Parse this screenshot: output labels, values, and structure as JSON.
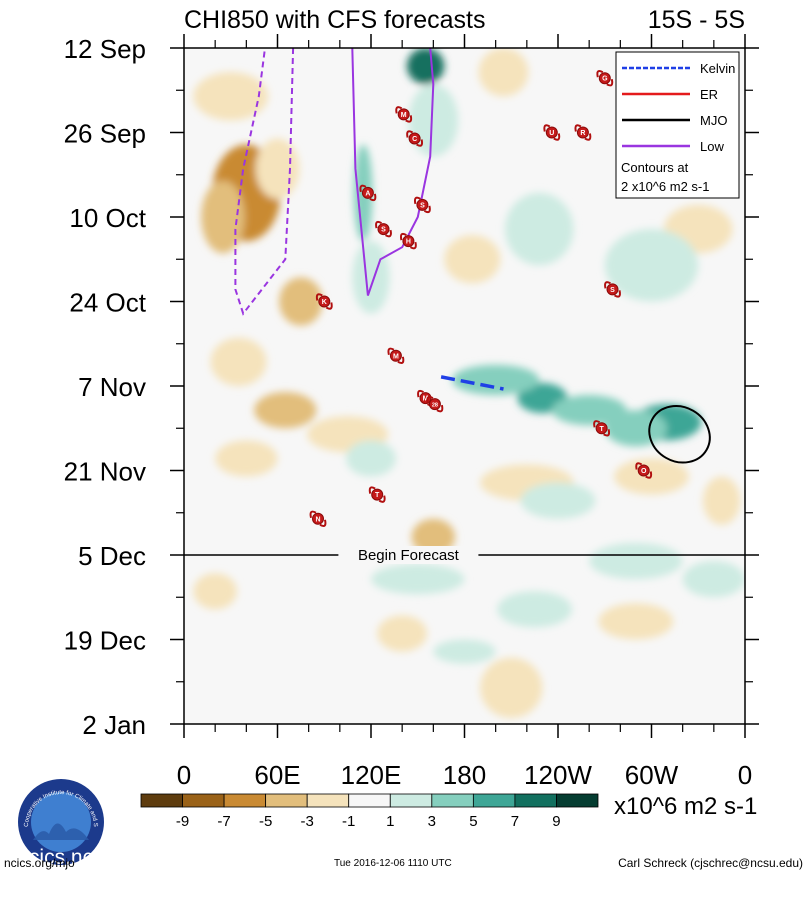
{
  "chart_data": {
    "type": "heatmap",
    "title": "CHI850 with CFS forecasts",
    "region_label": "15S - 5S",
    "y_axis": {
      "labels": [
        "12 Sep",
        "26 Sep",
        "10 Oct",
        "24 Oct",
        "7 Nov",
        "21 Nov",
        "5 Dec",
        "19 Dec",
        "2 Jan"
      ],
      "start_day": 0,
      "end_day": 112,
      "label_step_days": 14
    },
    "x_axis": {
      "labels": [
        "0",
        "60E",
        "120E",
        "180",
        "120W",
        "60W",
        "0"
      ],
      "lon_min": 0,
      "lon_max": 360
    },
    "forecast_line": {
      "day": 84,
      "label": "Begin Forecast"
    },
    "colorbar": {
      "tick_labels": [
        "-9",
        "-7",
        "-5",
        "-3",
        "-1",
        "1",
        "3",
        "5",
        "7",
        "9"
      ],
      "colors": [
        "#5e3c0e",
        "#9a6218",
        "#c98a33",
        "#e2be7c",
        "#f5e3bc",
        "#f7f7f7",
        "#cdebe2",
        "#85cfbe",
        "#3ea696",
        "#12705f",
        "#053d31"
      ],
      "units": "x10^6 m2 s-1"
    },
    "legend": {
      "entries": [
        {
          "name": "Kelvin",
          "color": "#1f3fe6",
          "dashed": true
        },
        {
          "name": "ER",
          "color": "#e41a1c",
          "dashed": false
        },
        {
          "name": "MJO",
          "color": "#000000",
          "dashed": false
        },
        {
          "name": "Low",
          "color": "#9a35e0",
          "dashed": false
        }
      ],
      "note_line1": "Contours at",
      "note_line2": "2 x10^6 m2 s-1"
    },
    "anomalies": [
      {
        "lon": 40,
        "day": 24,
        "value": -6,
        "rlon": 22,
        "rday": 8
      },
      {
        "lon": 25,
        "day": 28,
        "value": -4,
        "rlon": 14,
        "rday": 6
      },
      {
        "lon": 60,
        "day": 20,
        "value": -3,
        "rlon": 14,
        "rday": 5
      },
      {
        "lon": 30,
        "day": 8,
        "value": -3,
        "rlon": 24,
        "rday": 4
      },
      {
        "lon": 75,
        "day": 42,
        "value": -5,
        "rlon": 14,
        "rday": 4
      },
      {
        "lon": 35,
        "day": 52,
        "value": -3,
        "rlon": 18,
        "rday": 4
      },
      {
        "lon": 65,
        "day": 60,
        "value": -4,
        "rlon": 20,
        "rday": 3
      },
      {
        "lon": 105,
        "day": 64,
        "value": -3,
        "rlon": 26,
        "rday": 3
      },
      {
        "lon": 40,
        "day": 68,
        "value": -3,
        "rlon": 20,
        "rday": 3
      },
      {
        "lon": 160,
        "day": 81,
        "value": -5,
        "rlon": 14,
        "rday": 3
      },
      {
        "lon": 220,
        "day": 72,
        "value": -3,
        "rlon": 30,
        "rday": 3
      },
      {
        "lon": 300,
        "day": 71,
        "value": -3,
        "rlon": 24,
        "rday": 3
      },
      {
        "lon": 205,
        "day": 4,
        "value": -3,
        "rlon": 16,
        "rday": 4
      },
      {
        "lon": 185,
        "day": 35,
        "value": -3,
        "rlon": 18,
        "rday": 4
      },
      {
        "lon": 330,
        "day": 30,
        "value": -3,
        "rlon": 22,
        "rday": 4
      },
      {
        "lon": 345,
        "day": 75,
        "value": -3,
        "rlon": 12,
        "rday": 4
      },
      {
        "lon": 290,
        "day": 95,
        "value": -2,
        "rlon": 24,
        "rday": 3
      },
      {
        "lon": 210,
        "day": 106,
        "value": -2,
        "rlon": 20,
        "rday": 5
      },
      {
        "lon": 140,
        "day": 97,
        "value": -2,
        "rlon": 16,
        "rday": 3
      },
      {
        "lon": 20,
        "day": 90,
        "value": -2,
        "rlon": 14,
        "rday": 3
      },
      {
        "lon": 155,
        "day": 3,
        "value": 7,
        "rlon": 12,
        "rday": 3
      },
      {
        "lon": 115,
        "day": 24,
        "value": 4,
        "rlon": 6,
        "rday": 8
      },
      {
        "lon": 120,
        "day": 38,
        "value": 2,
        "rlon": 12,
        "rday": 6
      },
      {
        "lon": 160,
        "day": 12,
        "value": 2,
        "rlon": 16,
        "rday": 6
      },
      {
        "lon": 230,
        "day": 58,
        "value": 6,
        "rlon": 16,
        "rday": 2.5
      },
      {
        "lon": 200,
        "day": 55,
        "value": 4,
        "rlon": 28,
        "rday": 2.5
      },
      {
        "lon": 260,
        "day": 60,
        "value": 4,
        "rlon": 24,
        "rday": 2.5
      },
      {
        "lon": 310,
        "day": 62,
        "value": 6,
        "rlon": 22,
        "rday": 3
      },
      {
        "lon": 290,
        "day": 63,
        "value": 3,
        "rlon": 20,
        "rday": 3
      },
      {
        "lon": 228,
        "day": 30,
        "value": 2,
        "rlon": 22,
        "rday": 6
      },
      {
        "lon": 300,
        "day": 36,
        "value": 2,
        "rlon": 30,
        "rday": 6
      },
      {
        "lon": 150,
        "day": 88,
        "value": 2,
        "rlon": 30,
        "rday": 2.5
      },
      {
        "lon": 225,
        "day": 93,
        "value": 2,
        "rlon": 24,
        "rday": 3
      },
      {
        "lon": 290,
        "day": 85,
        "value": 2,
        "rlon": 30,
        "rday": 3
      },
      {
        "lon": 340,
        "day": 88,
        "value": 2,
        "rlon": 20,
        "rday": 3
      },
      {
        "lon": 240,
        "day": 75,
        "value": 2,
        "rlon": 24,
        "rday": 3
      },
      {
        "lon": 120,
        "day": 68,
        "value": 2,
        "rlon": 16,
        "rday": 3
      },
      {
        "lon": 180,
        "day": 100,
        "value": 2,
        "rlon": 20,
        "rday": 2
      }
    ],
    "contours": {
      "low_dashed_left": [
        [
          70,
          0
        ],
        [
          68,
          20
        ],
        [
          65,
          35
        ],
        [
          50,
          40
        ],
        [
          38,
          44
        ],
        [
          33,
          40
        ],
        [
          33,
          30
        ],
        [
          38,
          20
        ],
        [
          48,
          8
        ],
        [
          52,
          0
        ]
      ],
      "low_solid": [
        [
          108,
          0
        ],
        [
          110,
          20
        ],
        [
          118,
          41
        ],
        [
          126,
          35
        ],
        [
          140,
          33
        ],
        [
          150,
          28
        ],
        [
          158,
          18
        ],
        [
          160,
          6
        ],
        [
          158,
          0
        ]
      ],
      "kelvin": [
        [
          165,
          54.5
        ],
        [
          205,
          56.5
        ]
      ],
      "mjo_ellipse": {
        "lon": 318,
        "day": 64,
        "rlon": 20,
        "rday": 4.5,
        "angle": 30
      }
    },
    "storms": [
      {
        "letter": "G",
        "lon": 270,
        "day": 5
      },
      {
        "letter": "M",
        "lon": 141,
        "day": 11
      },
      {
        "letter": "U",
        "lon": 236,
        "day": 14
      },
      {
        "letter": "R",
        "lon": 256,
        "day": 14
      },
      {
        "letter": "C",
        "lon": 148,
        "day": 15
      },
      {
        "letter": "A",
        "lon": 118,
        "day": 24
      },
      {
        "letter": "S",
        "lon": 153,
        "day": 26
      },
      {
        "letter": "S",
        "lon": 128,
        "day": 30
      },
      {
        "letter": "H",
        "lon": 144,
        "day": 32
      },
      {
        "letter": "S",
        "lon": 275,
        "day": 40
      },
      {
        "letter": "K",
        "lon": 90,
        "day": 42
      },
      {
        "letter": "M",
        "lon": 136,
        "day": 51
      },
      {
        "letter": "M",
        "lon": 155,
        "day": 58
      },
      {
        "letter": "28",
        "lon": 161,
        "day": 59
      },
      {
        "letter": "T",
        "lon": 268,
        "day": 63
      },
      {
        "letter": "O",
        "lon": 295,
        "day": 70
      },
      {
        "letter": "T",
        "lon": 124,
        "day": 74
      },
      {
        "letter": "N",
        "lon": 86,
        "day": 78
      }
    ]
  },
  "logo": {
    "ring_text": "Cooperative Institute for Climate and Satellites",
    "name": "cics.nc"
  },
  "footer": {
    "left": "ncics.org/mjo",
    "center": "Tue 2016-12-06 1110 UTC",
    "right": "Carl Schreck (cjschrec@ncsu.edu)"
  }
}
